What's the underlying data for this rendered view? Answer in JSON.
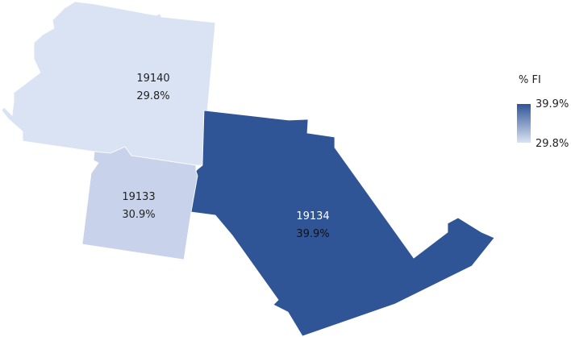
{
  "regions": [
    {
      "zip": "19140",
      "value": "29.8%",
      "color": "#dae3f3"
    },
    {
      "zip": "19133",
      "value": "30.9%",
      "color": "#c8d3eb"
    },
    {
      "zip": "19134",
      "value": "39.9%",
      "color": "#2f5597"
    }
  ],
  "legend": {
    "title": "% FI",
    "max": "39.9%",
    "min": "29.8%",
    "max_color": "#2f5597",
    "min_color": "#dae3f3"
  }
}
